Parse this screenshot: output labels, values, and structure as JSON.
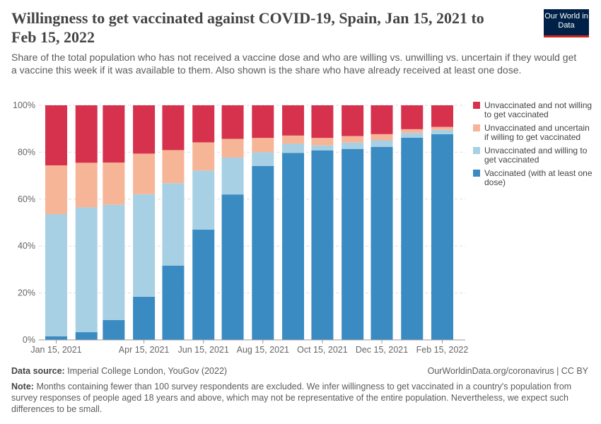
{
  "header": {
    "title": "Willingness to get vaccinated against COVID-19, Spain, Jan 15, 2021 to Feb 15, 2022",
    "subtitle": "Share of the total population who has not received a vaccine dose and who are willing vs. unwilling vs. uncertain if they would get a vaccine this week if it was available to them. Also shown is the share who have already received at least one dose.",
    "logo": "Our World in Data"
  },
  "chart_data": {
    "type": "bar",
    "stacked": true,
    "categories": [
      "2021-01-15",
      "2021-02-15",
      "2021-03-15",
      "2021-04-15",
      "2021-05-15",
      "2021-06-15",
      "2021-07-15",
      "2021-08-15",
      "2021-09-15",
      "2021-10-15",
      "2021-11-15",
      "2021-12-15",
      "2022-01-15",
      "2022-02-15"
    ],
    "x_tick_labels": [
      {
        "date": "2021-01-15",
        "label": "Jan 15, 2021"
      },
      {
        "date": "2021-04-15",
        "label": "Apr 15, 2021"
      },
      {
        "date": "2021-06-15",
        "label": "Jun 15, 2021"
      },
      {
        "date": "2021-08-15",
        "label": "Aug 15, 2021"
      },
      {
        "date": "2021-10-15",
        "label": "Oct 15, 2021"
      },
      {
        "date": "2021-12-15",
        "label": "Dec 15, 2021"
      },
      {
        "date": "2022-02-15",
        "label": "Feb 15, 2022"
      }
    ],
    "y_tick_labels": [
      "0%",
      "20%",
      "40%",
      "60%",
      "80%",
      "100%"
    ],
    "ylim": [
      0,
      100
    ],
    "grid": true,
    "legend_position": "right",
    "series": [
      {
        "name": "Vaccinated (with at least one dose)",
        "color": "#3a8bc2",
        "values": [
          1.5,
          3.3,
          8.5,
          18.4,
          31.7,
          47,
          62,
          74.1,
          79.7,
          80.8,
          81.4,
          82.3,
          86.2,
          87.7
        ]
      },
      {
        "name": "Unvaccinated and willing to get vaccinated",
        "color": "#a8d0e4",
        "values": [
          52.1,
          53.2,
          49.1,
          43.7,
          35.1,
          25.2,
          15.7,
          5.9,
          3.9,
          2.1,
          2.7,
          2.8,
          2,
          1.8
        ]
      },
      {
        "name": "Unvaccinated and uncertain if willing to get vaccinated",
        "color": "#f7b597",
        "values": [
          20.8,
          19,
          18,
          17.3,
          14.1,
          12,
          8,
          6.1,
          3.5,
          3.2,
          2.8,
          2.6,
          1.6,
          1.3
        ]
      },
      {
        "name": "Unvaccinated and not willing to get vaccinated",
        "color": "#d6324e",
        "values": [
          25.6,
          24.5,
          24.4,
          20.6,
          19.1,
          15.8,
          14.3,
          13.9,
          12.9,
          13.9,
          13.1,
          12.3,
          10.2,
          9.2
        ]
      }
    ]
  },
  "legend_order": [
    3,
    2,
    1,
    0
  ],
  "footer": {
    "source_label": "Data source:",
    "source": "Imperial College London, YouGov (2022)",
    "url": "OurWorldinData.org/coronavirus | CC BY",
    "note_label": "Note:",
    "note": "Months containing fewer than 100 survey respondents are excluded. We infer willingness to get vaccinated in a country's population from survey responses of people aged 18 years and above, which may not be representative of the entire population. Nevertheless, we expect such differences to be small."
  }
}
